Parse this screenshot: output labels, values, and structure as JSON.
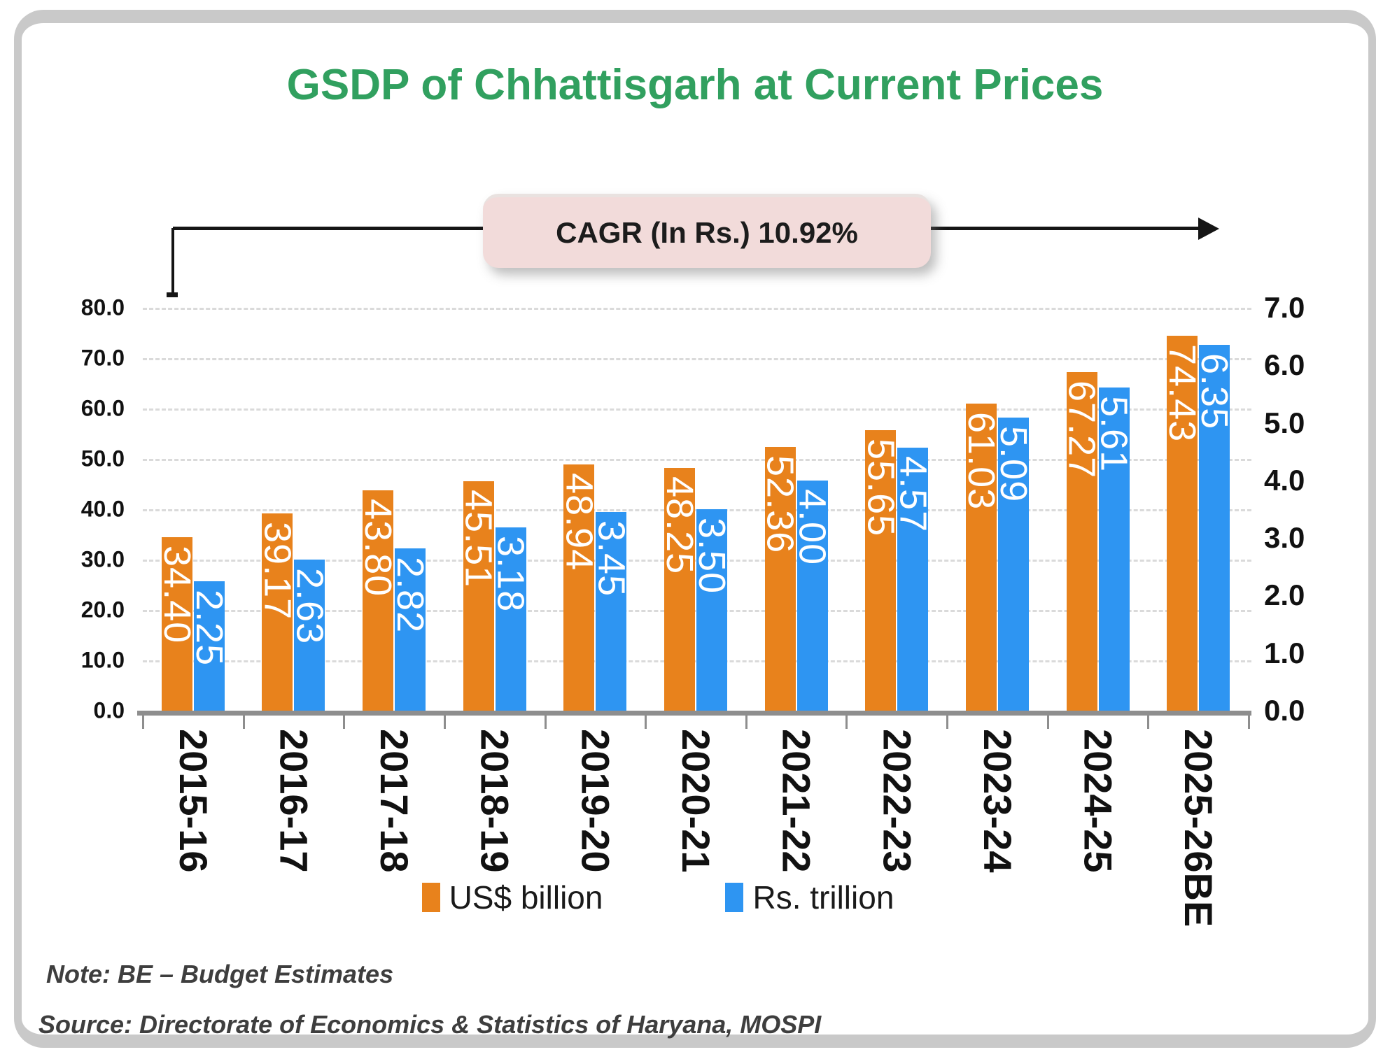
{
  "title": "GSDP of Chhattisgarh at Current Prices",
  "cagr_label": "CAGR (In Rs.) 10.92%",
  "note": "Note: BE – Budget Estimates",
  "source": "Source: Directorate of Economics & Statistics of Haryana, MOSPI",
  "legend": [
    {
      "label": "US$ billion",
      "color": "#E8821C"
    },
    {
      "label": "Rs. trillion",
      "color": "#2E95F2"
    }
  ],
  "colors": {
    "title_green": "#31A05F",
    "orange_bar": "#E8821C",
    "blue_bar": "#2E95F2",
    "cagr_box_fill": "#F2DBDA",
    "gridline": "#DADADA",
    "axis_line": "#8E8E8E",
    "note_text": "#3E3E3E",
    "card_border": "#C9C9C9"
  },
  "chart_data": {
    "type": "bar",
    "title": "GSDP of Chhattisgarh at Current Prices",
    "annotation": "CAGR (In Rs.) 10.92%",
    "categories": [
      "2015-16",
      "2016-17",
      "2017-18",
      "2018-19",
      "2019-20",
      "2020-21",
      "2021-22",
      "2022-23",
      "2023-24",
      "2024-25",
      "2025-26BE"
    ],
    "series": [
      {
        "name": "US$ billion",
        "axis": "left",
        "color": "#E8821C",
        "values": [
          34.4,
          39.17,
          43.8,
          45.51,
          48.94,
          48.25,
          52.36,
          55.65,
          61.03,
          67.27,
          74.43
        ]
      },
      {
        "name": "Rs. trillion",
        "axis": "right",
        "color": "#2E95F2",
        "values": [
          2.25,
          2.63,
          2.82,
          3.18,
          3.45,
          3.5,
          4.0,
          4.57,
          5.09,
          5.61,
          6.35
        ]
      }
    ],
    "left_axis": {
      "min": 0,
      "max": 80,
      "step": 10,
      "tick_labels": [
        "0.0",
        "10.0",
        "20.0",
        "30.0",
        "40.0",
        "50.0",
        "60.0",
        "70.0",
        "80.0"
      ]
    },
    "right_axis": {
      "min": 0,
      "max": 7,
      "step": 1,
      "tick_labels": [
        "0.0",
        "1.0",
        "2.0",
        "3.0",
        "4.0",
        "5.0",
        "6.0",
        "7.0"
      ]
    },
    "grid": "horizontal-dashed",
    "legend_position": "bottom",
    "data_labels": "inside-end, rotated 90deg, white"
  }
}
